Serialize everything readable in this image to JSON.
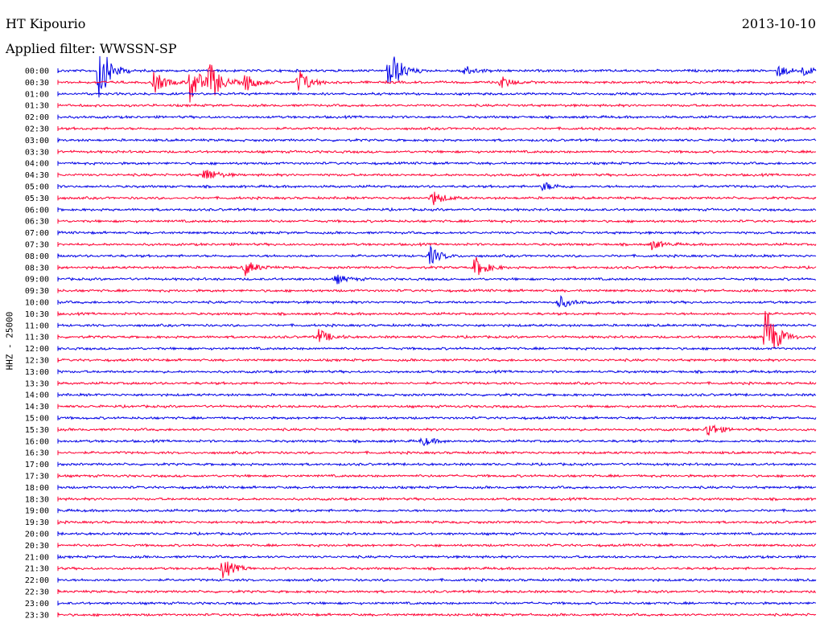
{
  "header": {
    "station": "HT Kipourio",
    "date": "2013-10-10",
    "filter_label": "Applied filter: WWSSN-SP"
  },
  "side_label": "HHZ - 25000",
  "colors": {
    "blue": "#0000e6",
    "red": "#ff0033",
    "text": "#000000",
    "background": "#ffffff"
  },
  "chart_data": {
    "type": "line",
    "title": "HT Kipourio",
    "subtitle": "Applied filter: WWSSN-SP",
    "ylabel": "HHZ - 25000",
    "trace_interval_minutes": 30,
    "trace_colors_alternating": [
      "#0000e6",
      "#ff0033"
    ],
    "tick_labels": [
      "00:00",
      "00:30",
      "01:00",
      "01:30",
      "02:00",
      "02:30",
      "03:00",
      "03:30",
      "04:00",
      "04:30",
      "05:00",
      "05:30",
      "06:00",
      "06:30",
      "07:00",
      "07:30",
      "08:00",
      "08:30",
      "09:00",
      "09:30",
      "10:00",
      "10:30",
      "11:00",
      "11:30",
      "12:00",
      "12:30",
      "13:00",
      "13:30",
      "14:00",
      "14:30",
      "15:00",
      "15:30",
      "16:00",
      "16:30",
      "17:00",
      "17:30",
      "18:00",
      "18:30",
      "19:00",
      "19:30",
      "20:00",
      "20:30",
      "21:00",
      "21:30",
      "22:00",
      "22:30",
      "23:00",
      "23:30"
    ],
    "grid": false,
    "legend": "none",
    "events": [
      {
        "trace": "00:00",
        "minute": 1.6,
        "amplitude": 1.0
      },
      {
        "trace": "00:00",
        "minute": 13.1,
        "amplitude": 0.8
      },
      {
        "trace": "00:00",
        "minute": 16.0,
        "amplitude": 0.2
      },
      {
        "trace": "00:00",
        "minute": 28.5,
        "amplitude": 0.2
      },
      {
        "trace": "00:00",
        "minute": 29.5,
        "amplitude": 0.15
      },
      {
        "trace": "00:30",
        "minute": 3.8,
        "amplitude": 0.35
      },
      {
        "trace": "00:30",
        "minute": 5.2,
        "amplitude": 0.7
      },
      {
        "trace": "00:30",
        "minute": 6.0,
        "amplitude": 0.6
      },
      {
        "trace": "00:30",
        "minute": 7.4,
        "amplitude": 0.3
      },
      {
        "trace": "00:30",
        "minute": 9.5,
        "amplitude": 0.45
      },
      {
        "trace": "00:30",
        "minute": 17.5,
        "amplitude": 0.2
      },
      {
        "trace": "04:30",
        "minute": 5.8,
        "amplitude": 0.25
      },
      {
        "trace": "05:00",
        "minute": 19.2,
        "amplitude": 0.15
      },
      {
        "trace": "05:30",
        "minute": 14.8,
        "amplitude": 0.25
      },
      {
        "trace": "07:30",
        "minute": 23.5,
        "amplitude": 0.15
      },
      {
        "trace": "08:00",
        "minute": 14.7,
        "amplitude": 0.3
      },
      {
        "trace": "08:30",
        "minute": 7.4,
        "amplitude": 0.25
      },
      {
        "trace": "08:30",
        "minute": 16.5,
        "amplitude": 0.35
      },
      {
        "trace": "09:00",
        "minute": 11.0,
        "amplitude": 0.15
      },
      {
        "trace": "10:00",
        "minute": 19.8,
        "amplitude": 0.22
      },
      {
        "trace": "11:30",
        "minute": 10.3,
        "amplitude": 0.25
      },
      {
        "trace": "11:30",
        "minute": 28.0,
        "amplitude": 1.0
      },
      {
        "trace": "15:30",
        "minute": 25.7,
        "amplitude": 0.25
      },
      {
        "trace": "16:00",
        "minute": 14.4,
        "amplitude": 0.15
      },
      {
        "trace": "21:30",
        "minute": 6.5,
        "amplitude": 0.35
      }
    ]
  }
}
